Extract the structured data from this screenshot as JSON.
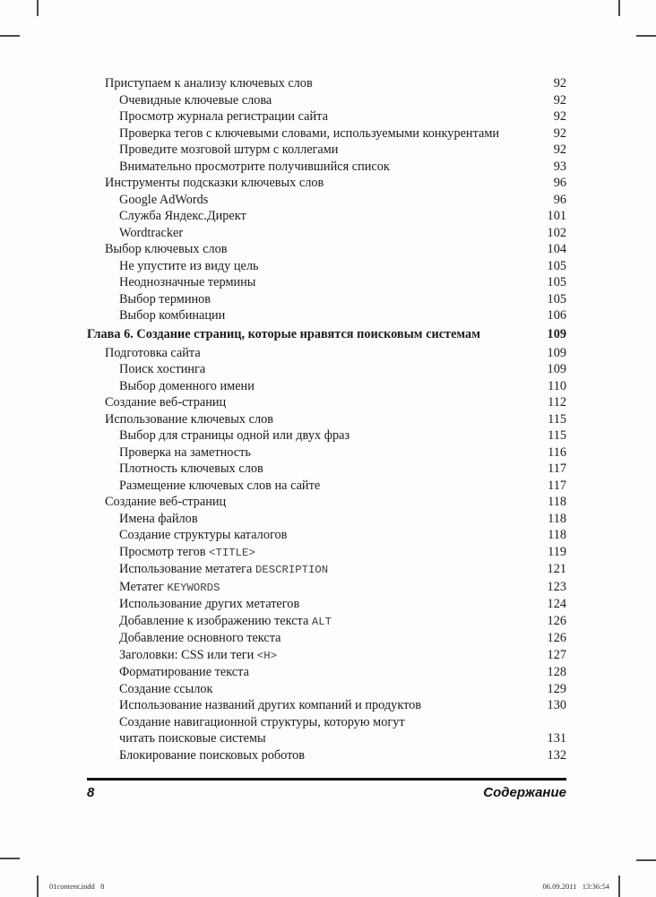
{
  "document": {
    "kind": "scanned book table of contents page",
    "footer": {
      "page_number": "8",
      "section_title": "Содержание"
    },
    "print_marks": {
      "left": "01content.indd   8",
      "right": "06.09.2011   13:36:54"
    }
  },
  "toc": {
    "entries": [
      {
        "level": 2,
        "parts": [
          {
            "t": "Приступаем к анализу ключевых слов"
          }
        ],
        "page": "92"
      },
      {
        "level": 3,
        "parts": [
          {
            "t": "Очевидные ключевые слова"
          }
        ],
        "page": "92"
      },
      {
        "level": 3,
        "parts": [
          {
            "t": "Просмотр журнала регистрации сайта"
          }
        ],
        "page": "92"
      },
      {
        "level": 3,
        "parts": [
          {
            "t": "Проверка тегов с ключевыми словами, используемыми конкурентами"
          }
        ],
        "page": "92"
      },
      {
        "level": 3,
        "parts": [
          {
            "t": "Проведите мозговой штурм с коллегами"
          }
        ],
        "page": "92"
      },
      {
        "level": 3,
        "parts": [
          {
            "t": "Внимательно просмотрите получившийся список"
          }
        ],
        "page": "93"
      },
      {
        "level": 2,
        "parts": [
          {
            "t": "Инструменты подсказки ключевых слов"
          }
        ],
        "page": "96"
      },
      {
        "level": 3,
        "parts": [
          {
            "t": "Google AdWords"
          }
        ],
        "page": "96"
      },
      {
        "level": 3,
        "parts": [
          {
            "t": "Служба Яндекс.Директ"
          }
        ],
        "page": "101"
      },
      {
        "level": 3,
        "parts": [
          {
            "t": "Wordtracker"
          }
        ],
        "page": "102"
      },
      {
        "level": 2,
        "parts": [
          {
            "t": "Выбор ключевых слов"
          }
        ],
        "page": "104"
      },
      {
        "level": 3,
        "parts": [
          {
            "t": "Не упустите из виду цель"
          }
        ],
        "page": "105"
      },
      {
        "level": 3,
        "parts": [
          {
            "t": "Неоднозначные термины"
          }
        ],
        "page": "105"
      },
      {
        "level": 3,
        "parts": [
          {
            "t": "Выбор терминов"
          }
        ],
        "page": "105"
      },
      {
        "level": 3,
        "parts": [
          {
            "t": "Выбор комбинации"
          }
        ],
        "page": "106"
      },
      {
        "level": 1,
        "parts": [
          {
            "t": "Глава 6. Создание страниц, которые нравятся поисковым системам"
          }
        ],
        "page": "109"
      },
      {
        "level": 2,
        "parts": [
          {
            "t": "Подготовка сайта"
          }
        ],
        "page": "109"
      },
      {
        "level": 3,
        "parts": [
          {
            "t": "Поиск хостинга"
          }
        ],
        "page": "109"
      },
      {
        "level": 3,
        "parts": [
          {
            "t": "Выбор доменного имени"
          }
        ],
        "page": "110"
      },
      {
        "level": 2,
        "parts": [
          {
            "t": "Создание веб-страниц"
          }
        ],
        "page": "112"
      },
      {
        "level": 2,
        "parts": [
          {
            "t": "Использование ключевых слов"
          }
        ],
        "page": "115"
      },
      {
        "level": 3,
        "parts": [
          {
            "t": "Выбор для страницы одной или двух фраз"
          }
        ],
        "page": "115"
      },
      {
        "level": 3,
        "parts": [
          {
            "t": "Проверка на заметность"
          }
        ],
        "page": "116"
      },
      {
        "level": 3,
        "parts": [
          {
            "t": "Плотность ключевых слов"
          }
        ],
        "page": "117"
      },
      {
        "level": 3,
        "parts": [
          {
            "t": "Размещение ключевых слов на сайте"
          }
        ],
        "page": "117"
      },
      {
        "level": 2,
        "parts": [
          {
            "t": "Создание веб-страниц"
          }
        ],
        "page": "118"
      },
      {
        "level": 3,
        "parts": [
          {
            "t": "Имена файлов"
          }
        ],
        "page": "118"
      },
      {
        "level": 3,
        "parts": [
          {
            "t": "Создание структуры каталогов"
          }
        ],
        "page": "118"
      },
      {
        "level": 3,
        "parts": [
          {
            "t": "Просмотр тегов "
          },
          {
            "t": "<TITLE>",
            "mono": true
          }
        ],
        "page": "119"
      },
      {
        "level": 3,
        "parts": [
          {
            "t": "Использование метатега "
          },
          {
            "t": "DESCRIPTION",
            "mono": true
          }
        ],
        "page": "121"
      },
      {
        "level": 3,
        "parts": [
          {
            "t": "Метатег "
          },
          {
            "t": "KEYWORDS",
            "mono": true
          }
        ],
        "page": "123"
      },
      {
        "level": 3,
        "parts": [
          {
            "t": "Использование других метатегов"
          }
        ],
        "page": "124"
      },
      {
        "level": 3,
        "parts": [
          {
            "t": "Добавление к изображению текста "
          },
          {
            "t": "ALT",
            "mono": true
          }
        ],
        "page": "126"
      },
      {
        "level": 3,
        "parts": [
          {
            "t": "Добавление основного текста"
          }
        ],
        "page": "126"
      },
      {
        "level": 3,
        "parts": [
          {
            "t": "Заголовки: CSS или теги "
          },
          {
            "t": "<H>",
            "mono": true
          }
        ],
        "page": "127"
      },
      {
        "level": 3,
        "parts": [
          {
            "t": "Форматирование текста"
          }
        ],
        "page": "128"
      },
      {
        "level": 3,
        "parts": [
          {
            "t": "Создание ссылок"
          }
        ],
        "page": "129"
      },
      {
        "level": 3,
        "parts": [
          {
            "t": "Использование названий других компаний и продуктов"
          }
        ],
        "page": "130"
      },
      {
        "level": 3,
        "parts": [
          {
            "t": "Создание навигационной структуры, которую могут"
          }
        ],
        "page": ""
      },
      {
        "level": 3,
        "continuation": true,
        "parts": [
          {
            "t": "читать поисковые системы"
          }
        ],
        "page": "131"
      },
      {
        "level": 3,
        "parts": [
          {
            "t": "Блокирование поисковых роботов"
          }
        ],
        "page": "132"
      }
    ]
  },
  "colors": {
    "paper": "#fdfdfd",
    "ink": "#1b1b1b",
    "mono_ink": "#3d3d3d",
    "crop_mark": "#4a4a4a",
    "footer_rule": "#121212"
  }
}
